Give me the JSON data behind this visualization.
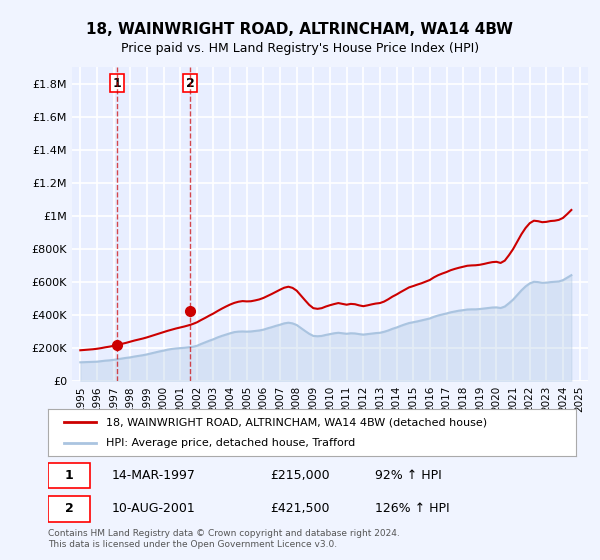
{
  "title": "18, WAINWRIGHT ROAD, ALTRINCHAM, WA14 4BW",
  "subtitle": "Price paid vs. HM Land Registry's House Price Index (HPI)",
  "legend_line1": "18, WAINWRIGHT ROAD, ALTRINCHAM, WA14 4BW (detached house)",
  "legend_line2": "HPI: Average price, detached house, Trafford",
  "transaction1_label": "1",
  "transaction1_date": "14-MAR-1997",
  "transaction1_price": "£215,000",
  "transaction1_hpi": "92% ↑ HPI",
  "transaction2_label": "2",
  "transaction2_date": "10-AUG-2001",
  "transaction2_price": "£421,500",
  "transaction2_hpi": "126% ↑ HPI",
  "footer": "Contains HM Land Registry data © Crown copyright and database right 2024.\nThis data is licensed under the Open Government Licence v3.0.",
  "bg_color": "#f0f4ff",
  "plot_bg_color": "#e8eeff",
  "grid_color": "#ffffff",
  "hpi_color": "#aac4e0",
  "price_color": "#cc0000",
  "ylim": [
    0,
    1900000
  ],
  "yticks": [
    0,
    200000,
    400000,
    600000,
    800000,
    1000000,
    1200000,
    1400000,
    1600000,
    1800000
  ],
  "ytick_labels": [
    "£0",
    "£200K",
    "£400K",
    "£600K",
    "£800K",
    "£1M",
    "£1.2M",
    "£1.4M",
    "£1.6M",
    "£1.8M"
  ],
  "xtick_years": [
    1995,
    1996,
    1997,
    1998,
    1999,
    2000,
    2001,
    2002,
    2003,
    2004,
    2005,
    2006,
    2007,
    2008,
    2009,
    2010,
    2011,
    2012,
    2013,
    2014,
    2015,
    2016,
    2017,
    2018,
    2019,
    2020,
    2021,
    2022,
    2023,
    2024,
    2025
  ],
  "hpi_data_x": [
    1995.0,
    1995.25,
    1995.5,
    1995.75,
    1996.0,
    1996.25,
    1996.5,
    1996.75,
    1997.0,
    1997.25,
    1997.5,
    1997.75,
    1998.0,
    1998.25,
    1998.5,
    1998.75,
    1999.0,
    1999.25,
    1999.5,
    1999.75,
    2000.0,
    2000.25,
    2000.5,
    2000.75,
    2001.0,
    2001.25,
    2001.5,
    2001.75,
    2002.0,
    2002.25,
    2002.5,
    2002.75,
    2003.0,
    2003.25,
    2003.5,
    2003.75,
    2004.0,
    2004.25,
    2004.5,
    2004.75,
    2005.0,
    2005.25,
    2005.5,
    2005.75,
    2006.0,
    2006.25,
    2006.5,
    2006.75,
    2007.0,
    2007.25,
    2007.5,
    2007.75,
    2008.0,
    2008.25,
    2008.5,
    2008.75,
    2009.0,
    2009.25,
    2009.5,
    2009.75,
    2010.0,
    2010.25,
    2010.5,
    2010.75,
    2011.0,
    2011.25,
    2011.5,
    2011.75,
    2012.0,
    2012.25,
    2012.5,
    2012.75,
    2013.0,
    2013.25,
    2013.5,
    2013.75,
    2014.0,
    2014.25,
    2014.5,
    2014.75,
    2015.0,
    2015.25,
    2015.5,
    2015.75,
    2016.0,
    2016.25,
    2016.5,
    2016.75,
    2017.0,
    2017.25,
    2017.5,
    2017.75,
    2018.0,
    2018.25,
    2018.5,
    2018.75,
    2019.0,
    2019.25,
    2019.5,
    2019.75,
    2020.0,
    2020.25,
    2020.5,
    2020.75,
    2021.0,
    2021.25,
    2021.5,
    2021.75,
    2022.0,
    2022.25,
    2022.5,
    2022.75,
    2023.0,
    2023.25,
    2023.5,
    2023.75,
    2024.0,
    2024.25,
    2024.5
  ],
  "hpi_data_y": [
    112000,
    113000,
    114000,
    115000,
    116000,
    119000,
    122000,
    124000,
    127000,
    131000,
    135000,
    139000,
    142000,
    147000,
    151000,
    155000,
    160000,
    166000,
    172000,
    178000,
    183000,
    189000,
    193000,
    196000,
    198000,
    200000,
    203000,
    206000,
    212000,
    223000,
    233000,
    243000,
    252000,
    263000,
    272000,
    280000,
    288000,
    295000,
    298000,
    299000,
    298000,
    299000,
    302000,
    305000,
    310000,
    318000,
    325000,
    333000,
    340000,
    348000,
    352000,
    348000,
    338000,
    320000,
    302000,
    285000,
    272000,
    270000,
    272000,
    278000,
    283000,
    288000,
    291000,
    288000,
    285000,
    288000,
    287000,
    283000,
    280000,
    283000,
    286000,
    289000,
    291000,
    297000,
    305000,
    315000,
    323000,
    333000,
    342000,
    350000,
    355000,
    360000,
    366000,
    372000,
    378000,
    388000,
    396000,
    402000,
    408000,
    415000,
    420000,
    425000,
    428000,
    432000,
    433000,
    433000,
    435000,
    438000,
    441000,
    444000,
    445000,
    441000,
    450000,
    470000,
    492000,
    520000,
    548000,
    572000,
    590000,
    600000,
    598000,
    594000,
    595000,
    598000,
    600000,
    602000,
    610000,
    625000,
    640000
  ],
  "price_data_x": [
    1995.0,
    1995.25,
    1995.5,
    1995.75,
    1996.0,
    1996.25,
    1996.5,
    1996.75,
    1997.0,
    1997.25,
    1997.5,
    1997.75,
    1998.0,
    1998.25,
    1998.5,
    1998.75,
    1999.0,
    1999.25,
    1999.5,
    1999.75,
    2000.0,
    2000.25,
    2000.5,
    2000.75,
    2001.0,
    2001.25,
    2001.5,
    2001.75,
    2002.0,
    2002.25,
    2002.5,
    2002.75,
    2003.0,
    2003.25,
    2003.5,
    2003.75,
    2004.0,
    2004.25,
    2004.5,
    2004.75,
    2005.0,
    2005.25,
    2005.5,
    2005.75,
    2006.0,
    2006.25,
    2006.5,
    2006.75,
    2007.0,
    2007.25,
    2007.5,
    2007.75,
    2008.0,
    2008.25,
    2008.5,
    2008.75,
    2009.0,
    2009.25,
    2009.5,
    2009.75,
    2010.0,
    2010.25,
    2010.5,
    2010.75,
    2011.0,
    2011.25,
    2011.5,
    2011.75,
    2012.0,
    2012.25,
    2012.5,
    2012.75,
    2013.0,
    2013.25,
    2013.5,
    2013.75,
    2014.0,
    2014.25,
    2014.5,
    2014.75,
    2015.0,
    2015.25,
    2015.5,
    2015.75,
    2016.0,
    2016.25,
    2016.5,
    2016.75,
    2017.0,
    2017.25,
    2017.5,
    2017.75,
    2018.0,
    2018.25,
    2018.5,
    2018.75,
    2019.0,
    2019.25,
    2019.5,
    2019.75,
    2020.0,
    2020.25,
    2020.5,
    2020.75,
    2021.0,
    2021.25,
    2021.5,
    2021.75,
    2022.0,
    2022.25,
    2022.5,
    2022.75,
    2023.0,
    2023.25,
    2023.5,
    2023.75,
    2024.0,
    2024.25,
    2024.5
  ],
  "price_data_y": [
    185000,
    187000,
    189000,
    191000,
    194000,
    198000,
    203000,
    207000,
    212000,
    218000,
    224000,
    230000,
    237000,
    244000,
    250000,
    256000,
    263000,
    271000,
    279000,
    287000,
    295000,
    303000,
    310000,
    317000,
    323000,
    329000,
    336000,
    344000,
    354000,
    368000,
    381000,
    395000,
    408000,
    423000,
    437000,
    450000,
    462000,
    472000,
    479000,
    483000,
    481000,
    482000,
    487000,
    493000,
    502000,
    514000,
    526000,
    539000,
    552000,
    564000,
    570000,
    563000,
    546000,
    517000,
    488000,
    460000,
    440000,
    436000,
    440000,
    450000,
    458000,
    465000,
    471000,
    466000,
    461000,
    466000,
    464000,
    457000,
    452000,
    457000,
    463000,
    468000,
    471000,
    480000,
    494000,
    510000,
    523000,
    538000,
    552000,
    566000,
    574000,
    583000,
    591000,
    601000,
    611000,
    627000,
    640000,
    650000,
    659000,
    670000,
    678000,
    685000,
    691000,
    697000,
    699000,
    700000,
    703000,
    708000,
    714000,
    719000,
    721000,
    714000,
    728000,
    761000,
    798000,
    843000,
    888000,
    926000,
    955000,
    970000,
    967000,
    961000,
    963000,
    968000,
    970000,
    975000,
    987000,
    1010000,
    1035000
  ],
  "sale1_x": 1997.2,
  "sale1_y": 215000,
  "sale2_x": 2001.6,
  "sale2_y": 421500
}
